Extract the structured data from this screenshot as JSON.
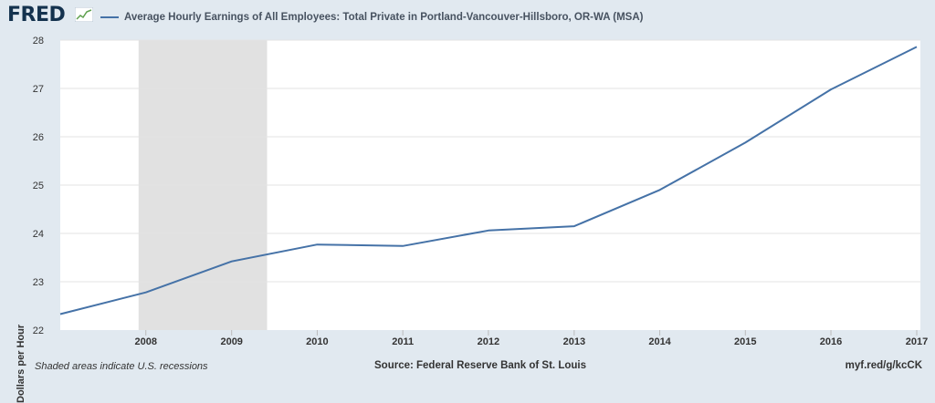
{
  "header": {
    "logo_text": "FRED",
    "legend_label": "Average Hourly Earnings of All Employees: Total Private in Portland-Vancouver-Hillsboro, OR-WA (MSA)"
  },
  "footer": {
    "shaded_note": "Shaded areas indicate U.S. recessions",
    "source": "Source: Federal Reserve Bank of St. Louis",
    "short_url": "myf.red/g/kcCK"
  },
  "colors": {
    "series": "#4572a7",
    "recession": "#e1e1e1",
    "background": "#e1e9f0",
    "plot": "#ffffff",
    "grid": "#e3e3e3"
  },
  "chart_data": {
    "type": "line",
    "title": "",
    "xlabel": "",
    "ylabel": "Dollars per Hour",
    "xticks": [
      "2008",
      "2009",
      "2010",
      "2011",
      "2012",
      "2013",
      "2014",
      "2015",
      "2016",
      "2017"
    ],
    "yticks": [
      "22",
      "23",
      "24",
      "25",
      "26",
      "27",
      "28"
    ],
    "ylim": [
      22,
      28
    ],
    "xlim": [
      "2007-01-01",
      "2017-01-01"
    ],
    "grid": true,
    "legend": "top-left",
    "recessions": [
      {
        "start": "2007-12-01",
        "end": "2009-06-01"
      }
    ],
    "series": [
      {
        "name": "Average Hourly Earnings of All Employees: Total Private in Portland-Vancouver-Hillsboro, OR-WA (MSA)",
        "x": [
          "2007-01-01",
          "2008-01-01",
          "2009-01-01",
          "2010-01-01",
          "2011-01-01",
          "2012-01-01",
          "2013-01-01",
          "2014-01-01",
          "2015-01-01",
          "2016-01-01",
          "2017-01-01"
        ],
        "values": [
          22.33,
          22.78,
          23.42,
          23.77,
          23.74,
          24.06,
          24.15,
          24.9,
          25.88,
          26.98,
          27.86
        ]
      }
    ]
  }
}
